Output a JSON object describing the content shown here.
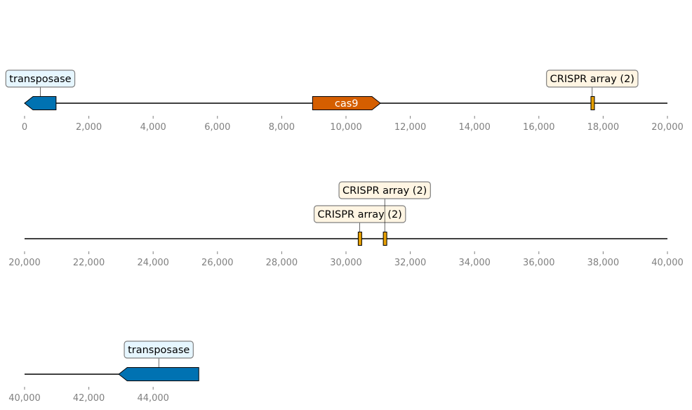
{
  "colors": {
    "transposase_fill": "#0072b2",
    "cas9_fill": "#d55e00",
    "crispr_fill": "#e69f00",
    "transposase_box": "#e6f6ff",
    "crispr_box": "#fff5e3",
    "axis_line": "#000000",
    "tick_text": "#808080"
  },
  "tracks": [
    {
      "name": "track-1",
      "start": 0,
      "end": 20000,
      "ticks": [
        "0",
        "2,000",
        "4,000",
        "6,000",
        "8,000",
        "10,000",
        "12,000",
        "14,000",
        "16,000",
        "18,000",
        "20,000"
      ],
      "features": [
        {
          "kind": "arrow",
          "start": 0,
          "end": 980,
          "strand": -1,
          "color": "#0072b2",
          "label": "transposase",
          "label_box": "#e6f6ff"
        },
        {
          "kind": "arrow",
          "start": 8960,
          "end": 11070,
          "strand": 1,
          "color": "#d55e00",
          "inner_label": "cas9"
        },
        {
          "kind": "box",
          "start": 17620,
          "end": 17700,
          "color": "#e69f00",
          "label": "CRISPR array (2)",
          "label_box": "#fff5e3"
        }
      ]
    },
    {
      "name": "track-2",
      "start": 20000,
      "end": 40000,
      "ticks": [
        "20,000",
        "22,000",
        "24,000",
        "26,000",
        "28,000",
        "30,000",
        "32,000",
        "34,000",
        "36,000",
        "38,000",
        "40,000"
      ],
      "features": [
        {
          "kind": "box",
          "start": 30380,
          "end": 30480,
          "color": "#e69f00",
          "label": "CRISPR array (2)",
          "label_box": "#fff5e3"
        },
        {
          "kind": "box",
          "start": 31160,
          "end": 31250,
          "color": "#e69f00",
          "label": "CRISPR array (2)",
          "label_box": "#fff5e3"
        }
      ]
    },
    {
      "name": "track-3",
      "start": 40000,
      "end": 45420,
      "ticks": [
        "40,000",
        "42,000",
        "44,000"
      ],
      "features": [
        {
          "kind": "arrow",
          "start": 42930,
          "end": 45420,
          "strand": -1,
          "color": "#0072b2",
          "label": "transposase",
          "label_box": "#e6f6ff"
        }
      ]
    }
  ]
}
